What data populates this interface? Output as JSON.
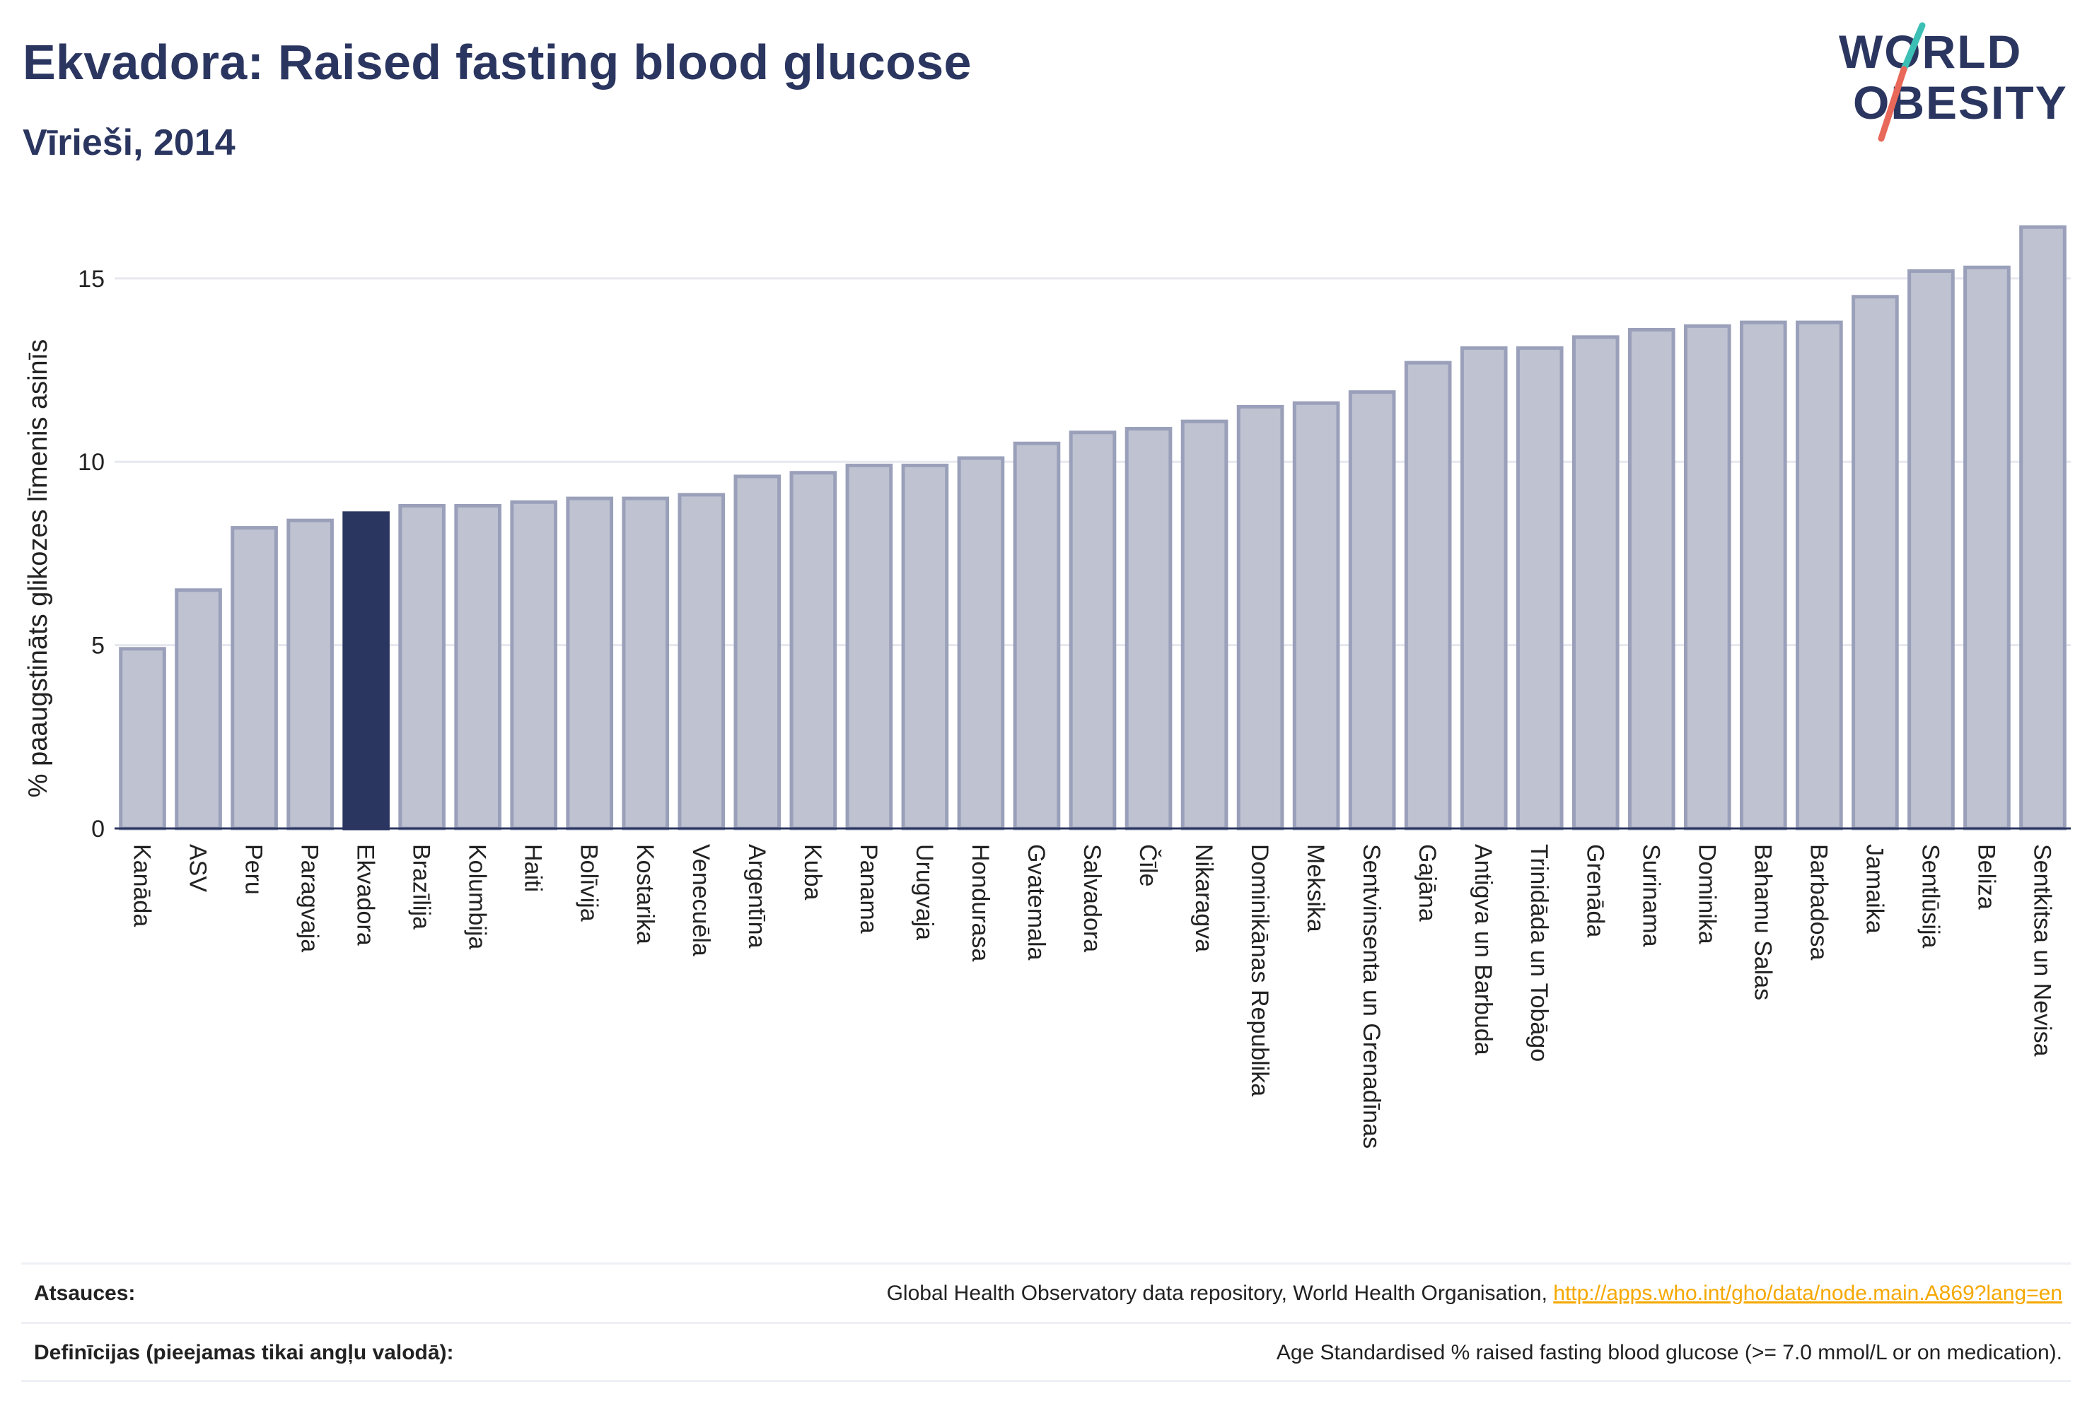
{
  "title": "Ekvadora: Raised fasting blood glucose",
  "subtitle": "Vīrieši, 2014",
  "logo": {
    "line1": "WORLD",
    "line2": "OBESITY"
  },
  "colors": {
    "bar": "#bfc2d0",
    "bar_stroke": "#9aa0ba",
    "highlight": "#2b3660",
    "grid": "#e6e8ef",
    "axis": "#2b3660",
    "link": "#f5a800"
  },
  "chart_data": {
    "type": "bar",
    "ylabel": "% paaugstināts glikozes līmenis asinīs",
    "xlabel": "",
    "ylim": [
      0,
      16.5
    ],
    "yticks": [
      0,
      5,
      10,
      15
    ],
    "grid": true,
    "highlight": "Ekvadora",
    "categories": [
      "Kanāda",
      "ASV",
      "Peru",
      "Paragvaja",
      "Ekvadora",
      "Brazīlija",
      "Kolumbija",
      "Haiti",
      "Bolīvija",
      "Kostarika",
      "Venecuēla",
      "Argentīna",
      "Kuba",
      "Panama",
      "Urugvaja",
      "Hondurasa",
      "Gvatemala",
      "Salvadora",
      "Čīle",
      "Nikaragva",
      "Dominikānas Republika",
      "Meksika",
      "Sentvinsenta un Grenadīnas",
      "Gajāna",
      "Antigva un Barbuda",
      "Trinidāda un Tobāgo",
      "Grenāda",
      "Surinama",
      "Dominika",
      "Bahamu Salas",
      "Barbadosa",
      "Jamaika",
      "Sentlūsija",
      "Beliza",
      "Sentkitsa un Nevisa"
    ],
    "values": [
      4.9,
      6.5,
      8.2,
      8.4,
      8.6,
      8.8,
      8.8,
      8.9,
      9.0,
      9.0,
      9.1,
      9.6,
      9.7,
      9.9,
      9.9,
      10.1,
      10.5,
      10.8,
      10.9,
      11.1,
      11.5,
      11.6,
      11.9,
      12.7,
      13.1,
      13.1,
      13.4,
      13.6,
      13.7,
      13.8,
      13.8,
      14.5,
      15.2,
      15.3,
      16.4
    ]
  },
  "footer": {
    "sources_label": "Atsauces:",
    "sources_text": "Global Health Observatory data repository, World Health Organisation, ",
    "sources_link": "http://apps.who.int/gho/data/node.main.A869?lang=en",
    "definitions_label": "Definīcijas (pieejamas tikai angļu valodā):",
    "definitions_text": "Age Standardised % raised fasting blood glucose (>= 7.0 mmol/L or on medication)."
  }
}
